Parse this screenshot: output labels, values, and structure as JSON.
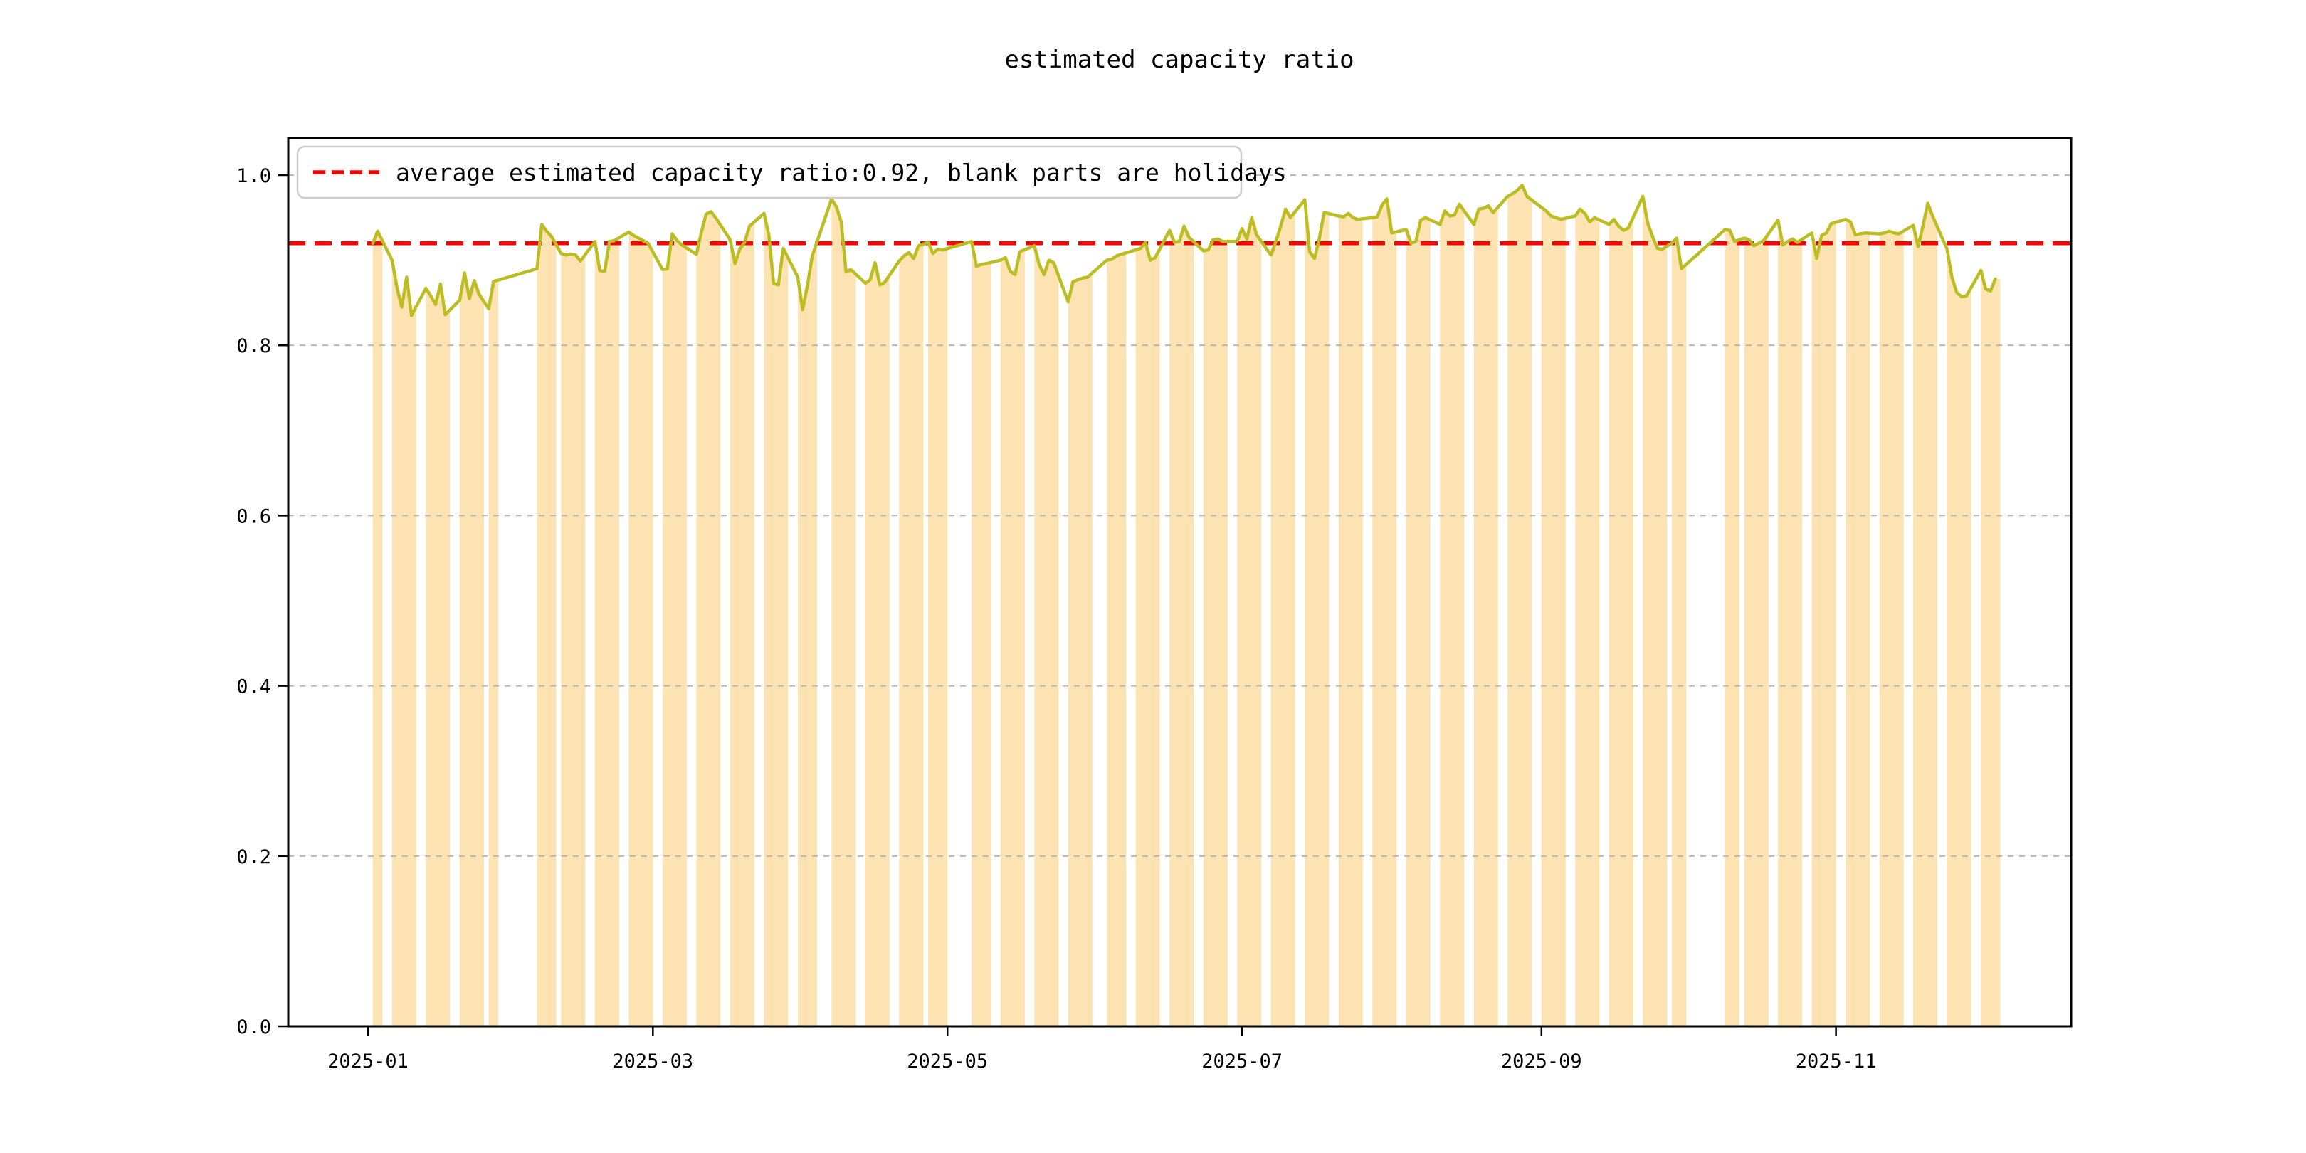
{
  "chart_data": {
    "type": "line",
    "title": "estimated capacity ratio",
    "legend_label": "average estimated capacity ratio:0.92, blank parts are holidays",
    "legend_marker": "red-dashed-line",
    "legend_position": "upper-left",
    "average_value": 0.92,
    "grid": true,
    "x_axis": {
      "epoch": "2025-01-01",
      "tick_labels": [
        "2025-01",
        "2025-03",
        "2025-05",
        "2025-07",
        "2025-09",
        "2025-11"
      ],
      "tick_days": [
        0,
        59,
        120,
        181,
        243,
        304
      ]
    },
    "y_axis": {
      "tick_labels": [
        "0.0",
        "0.2",
        "0.4",
        "0.6",
        "0.8",
        "1.0"
      ],
      "tick_values": [
        0.0,
        0.2,
        0.4,
        0.6,
        0.8,
        1.0
      ],
      "range": [
        0.0,
        1.043
      ]
    },
    "colors": {
      "line": "#BCBD22",
      "workday_fill": "#FCE3B1",
      "average_line": "#FF0000",
      "grid": "#B3B3B3",
      "spine": "#000000",
      "legend_border": "#CCCCCC",
      "background": "#FFFFFF"
    },
    "workday_spans_days": [
      [
        1,
        3
      ],
      [
        5,
        10
      ],
      [
        12,
        17
      ],
      [
        19,
        24
      ],
      [
        25,
        27
      ],
      [
        35,
        39
      ],
      [
        40,
        45
      ],
      [
        47,
        52
      ],
      [
        54,
        59
      ],
      [
        61,
        66
      ],
      [
        68,
        73
      ],
      [
        75,
        80
      ],
      [
        82,
        87
      ],
      [
        89,
        93
      ],
      [
        96,
        101
      ],
      [
        103,
        108
      ],
      [
        110,
        115
      ],
      [
        116,
        120
      ],
      [
        125,
        129
      ],
      [
        131,
        136
      ],
      [
        138,
        143
      ],
      [
        145,
        150
      ],
      [
        153,
        157
      ],
      [
        159,
        164
      ],
      [
        166,
        171
      ],
      [
        173,
        178
      ],
      [
        180,
        185
      ],
      [
        187,
        192
      ],
      [
        194,
        199
      ],
      [
        201,
        206
      ],
      [
        208,
        213
      ],
      [
        215,
        220
      ],
      [
        222,
        227
      ],
      [
        229,
        234
      ],
      [
        236,
        241
      ],
      [
        243,
        248
      ],
      [
        250,
        255
      ],
      [
        257,
        262
      ],
      [
        264,
        269
      ],
      [
        270,
        273
      ],
      [
        281,
        284
      ],
      [
        285,
        290
      ],
      [
        292,
        297
      ],
      [
        299,
        304
      ],
      [
        306,
        311
      ],
      [
        313,
        318
      ],
      [
        320,
        325
      ],
      [
        327,
        332
      ],
      [
        334,
        338
      ]
    ],
    "holiday_gaps_days": [
      [
        27,
        35
      ],
      [
        93,
        96
      ],
      [
        120,
        125
      ],
      [
        150,
        153
      ],
      [
        273,
        281
      ]
    ],
    "line_series": {
      "days": [
        1,
        2,
        5,
        6,
        7,
        8,
        9,
        12,
        13,
        14,
        15,
        16,
        19,
        20,
        21,
        22,
        23,
        25,
        26,
        35,
        36,
        37,
        38,
        40,
        41,
        42,
        43,
        44,
        47,
        48,
        49,
        50,
        51,
        54,
        55,
        56,
        57,
        58,
        61,
        62,
        63,
        64,
        65,
        68,
        69,
        70,
        71,
        72,
        75,
        76,
        77,
        78,
        79,
        82,
        83,
        84,
        85,
        86,
        89,
        90,
        91,
        92,
        96,
        97,
        98,
        99,
        100,
        103,
        104,
        105,
        106,
        107,
        110,
        111,
        112,
        113,
        114,
        116,
        117,
        118,
        119,
        125,
        126,
        127,
        128,
        131,
        132,
        133,
        134,
        135,
        138,
        139,
        140,
        141,
        142,
        145,
        146,
        147,
        148,
        149,
        153,
        154,
        155,
        156,
        159,
        160,
        161,
        162,
        163,
        166,
        167,
        168,
        169,
        170,
        173,
        174,
        175,
        176,
        177,
        180,
        181,
        182,
        183,
        184,
        187,
        188,
        189,
        190,
        191,
        194,
        195,
        196,
        197,
        198,
        201,
        202,
        203,
        204,
        205,
        208,
        209,
        210,
        211,
        212,
        215,
        216,
        217,
        218,
        219,
        222,
        223,
        224,
        225,
        226,
        229,
        230,
        231,
        232,
        233,
        236,
        237,
        238,
        239,
        240,
        243,
        244,
        245,
        246,
        247,
        250,
        251,
        252,
        253,
        254,
        257,
        258,
        259,
        260,
        261,
        264,
        265,
        266,
        267,
        268,
        270,
        271,
        272,
        281,
        282,
        283,
        285,
        286,
        287,
        288,
        289,
        292,
        293,
        294,
        295,
        296,
        299,
        300,
        301,
        302,
        303,
        306,
        307,
        308,
        309,
        310,
        313,
        314,
        315,
        316,
        317,
        320,
        321,
        322,
        323,
        324,
        327,
        328,
        329,
        330,
        331,
        334,
        335,
        336,
        337
      ],
      "values": [
        0.92,
        0.934,
        0.9,
        0.868,
        0.845,
        0.88,
        0.835,
        0.867,
        0.858,
        0.848,
        0.872,
        0.836,
        0.853,
        0.885,
        0.855,
        0.876,
        0.86,
        0.843,
        0.875,
        0.89,
        0.942,
        0.934,
        0.928,
        0.908,
        0.906,
        0.907,
        0.906,
        0.899,
        0.922,
        0.888,
        0.887,
        0.922,
        0.923,
        0.933,
        0.929,
        0.926,
        0.923,
        0.92,
        0.889,
        0.89,
        0.931,
        0.923,
        0.918,
        0.907,
        0.932,
        0.954,
        0.957,
        0.95,
        0.924,
        0.896,
        0.913,
        0.921,
        0.94,
        0.955,
        0.93,
        0.873,
        0.871,
        0.914,
        0.88,
        0.842,
        0.87,
        0.905,
        0.972,
        0.963,
        0.945,
        0.886,
        0.889,
        0.873,
        0.877,
        0.897,
        0.871,
        0.874,
        0.899,
        0.905,
        0.909,
        0.902,
        0.917,
        0.921,
        0.908,
        0.913,
        0.912,
        0.922,
        0.893,
        0.895,
        0.896,
        0.9,
        0.903,
        0.887,
        0.883,
        0.91,
        0.917,
        0.895,
        0.883,
        0.9,
        0.897,
        0.851,
        0.875,
        0.877,
        0.879,
        0.88,
        0.9,
        0.901,
        0.905,
        0.907,
        0.912,
        0.914,
        0.921,
        0.9,
        0.903,
        0.935,
        0.921,
        0.922,
        0.94,
        0.927,
        0.911,
        0.912,
        0.924,
        0.925,
        0.922,
        0.922,
        0.937,
        0.925,
        0.95,
        0.93,
        0.906,
        0.922,
        0.94,
        0.96,
        0.95,
        0.971,
        0.91,
        0.902,
        0.925,
        0.956,
        0.952,
        0.951,
        0.955,
        0.95,
        0.948,
        0.95,
        0.951,
        0.965,
        0.972,
        0.932,
        0.936,
        0.92,
        0.922,
        0.947,
        0.95,
        0.942,
        0.958,
        0.952,
        0.953,
        0.966,
        0.942,
        0.96,
        0.961,
        0.964,
        0.956,
        0.975,
        0.978,
        0.982,
        0.988,
        0.975,
        0.962,
        0.958,
        0.952,
        0.95,
        0.948,
        0.952,
        0.96,
        0.955,
        0.945,
        0.95,
        0.942,
        0.948,
        0.94,
        0.935,
        0.938,
        0.975,
        0.944,
        0.928,
        0.914,
        0.913,
        0.92,
        0.926,
        0.89,
        0.936,
        0.935,
        0.922,
        0.926,
        0.924,
        0.917,
        0.92,
        0.923,
        0.947,
        0.918,
        0.922,
        0.925,
        0.921,
        0.932,
        0.902,
        0.929,
        0.932,
        0.943,
        0.948,
        0.945,
        0.93,
        0.931,
        0.932,
        0.931,
        0.932,
        0.934,
        0.932,
        0.931,
        0.941,
        0.916,
        0.94,
        0.967,
        0.952,
        0.913,
        0.88,
        0.862,
        0.857,
        0.858,
        0.888,
        0.866,
        0.864,
        0.878
      ]
    }
  }
}
